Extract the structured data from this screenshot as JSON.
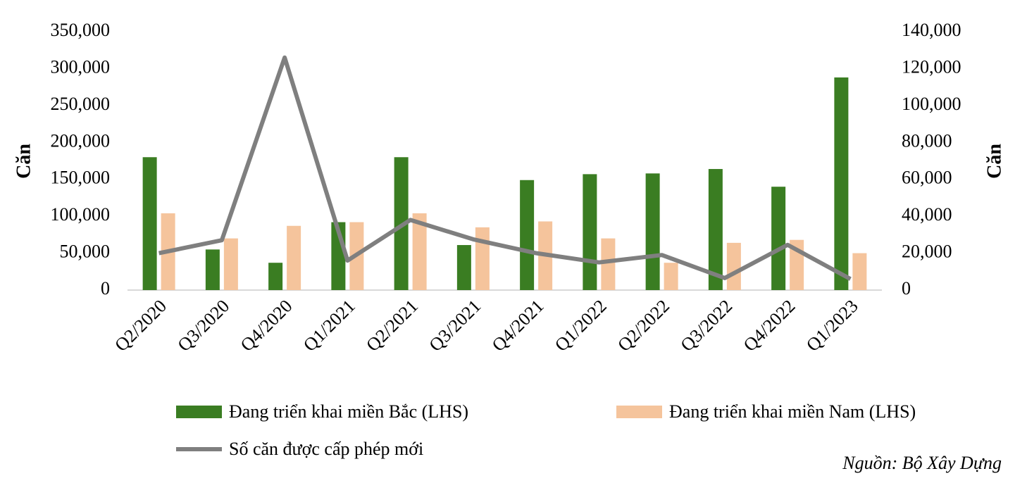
{
  "chart_data": {
    "type": "bar-line",
    "y_label": "Căn",
    "y2_label": "Căn",
    "source": "Nguồn: Bộ Xây Dựng",
    "categories": [
      "Q2/2020",
      "Q3/2020",
      "Q4/2020",
      "Q1/2021",
      "Q2/2021",
      "Q3/2021",
      "Q4/2021",
      "Q1/2022",
      "Q2/2022",
      "Q3/2022",
      "Q4/2022",
      "Q1/2023"
    ],
    "series": [
      {
        "name": "Đang triển khai miền Bắc (LHS)",
        "color": "#3a7d22",
        "type": "bar",
        "values": [
          180000,
          55000,
          37000,
          92000,
          180000,
          61000,
          149000,
          157000,
          158000,
          164000,
          140000,
          288000
        ]
      },
      {
        "name": "Đang triển khai miền Nam (LHS)",
        "color": "#f5c49c",
        "type": "bar",
        "values": [
          104000,
          70000,
          87000,
          92000,
          104000,
          85000,
          93000,
          70000,
          37000,
          64000,
          68000,
          50000
        ]
      },
      {
        "name": "Số căn được cấp phép mới",
        "color": "#7f7f7f",
        "type": "line",
        "axis": "y2",
        "values": [
          20000,
          27000,
          126000,
          16000,
          38000,
          27500,
          20000,
          15000,
          19000,
          6500,
          24500,
          6000
        ]
      }
    ],
    "ylim": [
      0,
      350000
    ],
    "yticks": [
      0,
      {
        "value": 50000,
        "label": "50,000"
      },
      {
        "value": 100000,
        "label": "100,000"
      },
      {
        "value": 150000,
        "label": "150,000"
      },
      {
        "value": 200000,
        "label": "200,000"
      },
      {
        "value": 250000,
        "label": "250,000"
      },
      {
        "value": 300000,
        "label": "300,000"
      },
      {
        "value": 350000,
        "label": "350,000"
      }
    ],
    "y2lim": [
      0,
      140000
    ],
    "y2ticks": [
      0,
      {
        "value": 20000,
        "label": "20,000"
      },
      {
        "value": 40000,
        "label": "40,000"
      },
      {
        "value": 60000,
        "label": "60,000"
      },
      {
        "value": 80000,
        "label": "80,000"
      },
      {
        "value": 100000,
        "label": "100,000"
      },
      {
        "value": 120000,
        "label": "120,000"
      },
      {
        "value": 140000,
        "label": "140,000"
      }
    ]
  }
}
